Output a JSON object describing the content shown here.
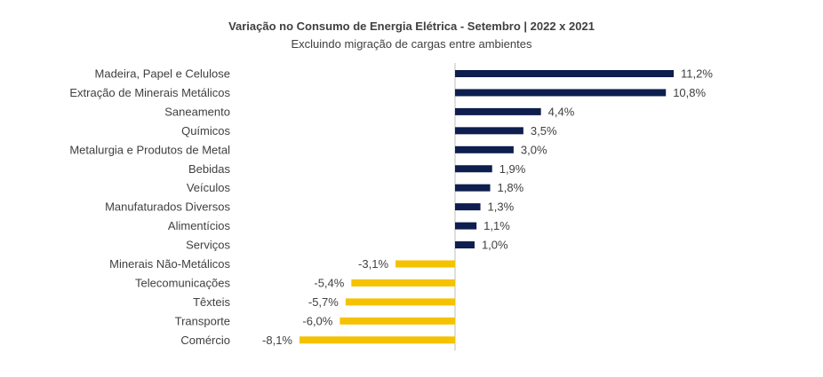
{
  "chart_data": {
    "type": "bar",
    "orientation": "horizontal",
    "title": "Variação no Consumo de Energia Elétrica - Setembro | 2022 x 2021",
    "subtitle": "Excluindo migração de cargas entre ambientes",
    "categories": [
      "Madeira, Papel e Celulose",
      "Extração de Minerais Metálicos",
      "Saneamento",
      "Químicos",
      "Metalurgia e Produtos de Metal",
      "Bebidas",
      "Veículos",
      "Manufaturados Diversos",
      "Alimentícios",
      "Serviços",
      "Minerais Não-Metálicos",
      "Telecomunicações",
      "Têxteis",
      "Transporte",
      "Comércio"
    ],
    "values": [
      11.2,
      10.8,
      4.4,
      3.5,
      3.0,
      1.9,
      1.8,
      1.3,
      1.1,
      1.0,
      -3.1,
      -5.4,
      -5.7,
      -6.0,
      -8.1
    ],
    "value_labels": [
      "11,2%",
      "10,8%",
      "4,4%",
      "3,5%",
      "3,0%",
      "1,9%",
      "1,8%",
      "1,3%",
      "1,1%",
      "1,0%",
      "-3,1%",
      "-5,4%",
      "-5,7%",
      "-6,0%",
      "-8,1%"
    ],
    "colors": {
      "positive": "#0d1e4f",
      "negative": "#f5c200",
      "axis": "#bfbfbf"
    },
    "xlim": [
      -8.1,
      11.2
    ],
    "grid": false,
    "legend": "none"
  }
}
